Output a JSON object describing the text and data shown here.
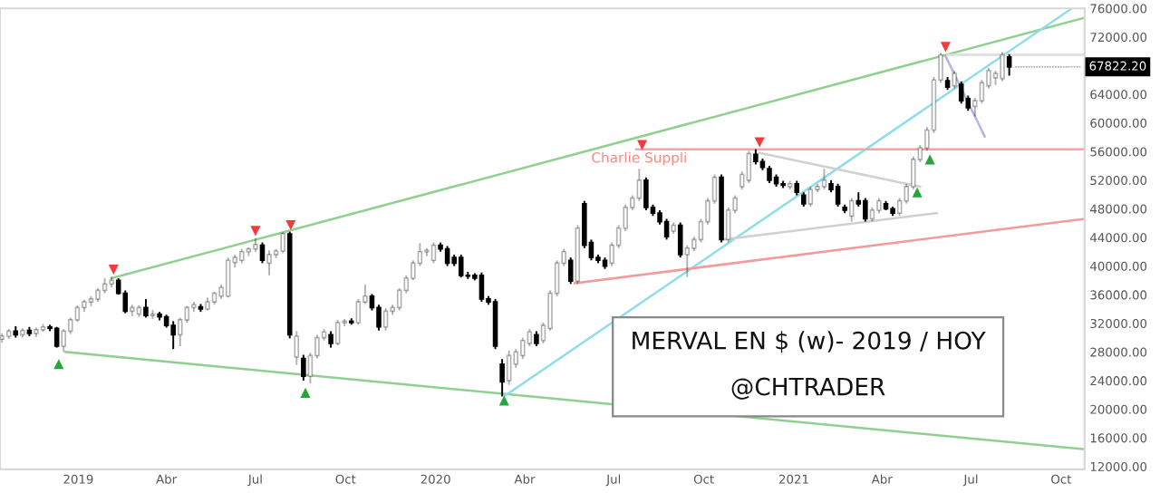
{
  "chart_data": {
    "type": "candlestick",
    "xlim": [
      "2018-10-13",
      "2021-10-25"
    ],
    "ylim": [
      11600,
      76000
    ],
    "xticks": [
      {
        "value": "2019-01-01",
        "label": "2019"
      },
      {
        "value": "2019-04-01",
        "label": "Abr"
      },
      {
        "value": "2019-07-01",
        "label": "Jul"
      },
      {
        "value": "2019-10-01",
        "label": "Oct"
      },
      {
        "value": "2020-01-01",
        "label": "2020"
      },
      {
        "value": "2020-04-01",
        "label": "Abr"
      },
      {
        "value": "2020-07-01",
        "label": "Jul"
      },
      {
        "value": "2020-10-01",
        "label": "Oct"
      },
      {
        "value": "2021-01-01",
        "label": "2021"
      },
      {
        "value": "2021-04-01",
        "label": "Abr"
      },
      {
        "value": "2021-07-01",
        "label": "Jul"
      },
      {
        "value": "2021-10-01",
        "label": "Oct"
      }
    ],
    "yticks": [
      {
        "value": 12000,
        "label": "12000.00"
      },
      {
        "value": 16000,
        "label": "16000.00"
      },
      {
        "value": 20000,
        "label": "20000.00"
      },
      {
        "value": 24000,
        "label": "24000.00"
      },
      {
        "value": 28000,
        "label": "28000.00"
      },
      {
        "value": 32000,
        "label": "32000.00"
      },
      {
        "value": 36000,
        "label": "36000.00"
      },
      {
        "value": 40000,
        "label": "40000.00"
      },
      {
        "value": 44000,
        "label": "44000.00"
      },
      {
        "value": 48000,
        "label": "48000.00"
      },
      {
        "value": 52000,
        "label": "52000.00"
      },
      {
        "value": 56000,
        "label": "56000.00"
      },
      {
        "value": 60000,
        "label": "60000.00"
      },
      {
        "value": 64000,
        "label": "64000.00"
      },
      {
        "value": 72000,
        "label": "72000.00"
      },
      {
        "value": 76000,
        "label": "76000.00"
      }
    ],
    "annotations": [
      "MERVAL EN $ (w)- 2019 / HOY",
      "@CHTRADER",
      {
        "text": "Charlie Suppli",
        "x": "2020-07-27",
        "y": 55000
      },
      {
        "text": "67822.20",
        "x": "2021-08-09",
        "y": 67822.2
      }
    ],
    "series": [
      {
        "type": "line",
        "color": "#8fd08f",
        "x": [
          "2019-02-04",
          "2021-10-25"
        ],
        "values": [
          38300,
          74700
        ]
      },
      {
        "type": "line",
        "color": "#8fd08f",
        "x": [
          "2018-12-19",
          "2021-10-25"
        ],
        "values": [
          28000,
          14400
        ]
      },
      {
        "type": "line",
        "color": "#8fdcea",
        "x": [
          "2020-03-11",
          "2021-10-11"
        ],
        "values": [
          21800,
          75900
        ]
      },
      {
        "type": "line",
        "color": "#f5a3a3",
        "x": [
          "2020-07-24",
          "2021-10-25"
        ],
        "values": [
          56300,
          56300
        ]
      },
      {
        "type": "line",
        "color": "#f29b9b",
        "x": [
          "2020-05-22",
          "2021-10-25"
        ],
        "values": [
          37600,
          46600
        ]
      },
      {
        "type": "line",
        "color": "#d0d0d0",
        "x": [
          "2020-11-27",
          "2021-05-10"
        ],
        "values": [
          55800,
          51100
        ]
      },
      {
        "type": "line",
        "color": "#d0d0d0",
        "x": [
          "2020-10-21",
          "2021-05-27"
        ],
        "values": [
          43700,
          47400
        ]
      },
      {
        "type": "line",
        "color": "#b0b4e6",
        "x": [
          "2021-06-05",
          "2021-07-15"
        ],
        "values": [
          69300,
          58100
        ]
      },
      {
        "type": "line",
        "color": "#dddddd",
        "x": [
          "2021-06-07",
          "2021-10-25"
        ],
        "values": [
          69500,
          69500
        ]
      },
      {
        "type": "scatter",
        "marker": "triangle_down",
        "color": "#f23b3b",
        "x": [
          "2019-02-06",
          "2019-07-01",
          "2019-08-06",
          "2020-07-30",
          "2020-11-27",
          "2021-06-05"
        ],
        "values": [
          39500,
          44900,
          45700,
          56900,
          57300,
          70600
        ]
      },
      {
        "type": "scatter",
        "marker": "triangle",
        "color": "#26a63a",
        "x": [
          "2018-12-12",
          "2019-08-21",
          "2020-03-11",
          "2021-05-07",
          "2021-05-20"
        ],
        "values": [
          26300,
          22300,
          21200,
          50300,
          54900
        ]
      },
      {
        "color": "#000000",
        "x": [
          "2018-10-15",
          "2018-10-22",
          "2018-10-29",
          "2018-11-05",
          "2018-11-12",
          "2018-11-19",
          "2018-11-26",
          "2018-12-03",
          "2018-12-10",
          "2018-12-17",
          "2018-12-24",
          "2018-12-31",
          "2019-01-07",
          "2019-01-14",
          "2019-01-21",
          "2019-01-28",
          "2019-02-04",
          "2019-02-11",
          "2019-02-18",
          "2019-02-25",
          "2019-03-04",
          "2019-03-11",
          "2019-03-18",
          "2019-03-25",
          "2019-04-01",
          "2019-04-08",
          "2019-04-15",
          "2019-04-22",
          "2019-04-29",
          "2019-05-06",
          "2019-05-13",
          "2019-05-20",
          "2019-05-27",
          "2019-06-03",
          "2019-06-10",
          "2019-06-17",
          "2019-06-24",
          "2019-07-01",
          "2019-07-08",
          "2019-07-15",
          "2019-07-22",
          "2019-07-29",
          "2019-08-05",
          "2019-08-12",
          "2019-08-19",
          "2019-08-26",
          "2019-09-02",
          "2019-09-09",
          "2019-09-16",
          "2019-09-23",
          "2019-09-30",
          "2019-10-07",
          "2019-10-14",
          "2019-10-21",
          "2019-10-28",
          "2019-11-04",
          "2019-11-11",
          "2019-11-18",
          "2019-11-25",
          "2019-12-02",
          "2019-12-09",
          "2019-12-16",
          "2019-12-23",
          "2019-12-30",
          "2020-01-06",
          "2020-01-13",
          "2020-01-20",
          "2020-01-27",
          "2020-02-03",
          "2020-02-10",
          "2020-02-17",
          "2020-02-24",
          "2020-03-02",
          "2020-03-09",
          "2020-03-16",
          "2020-03-23",
          "2020-03-30",
          "2020-04-06",
          "2020-04-13",
          "2020-04-20",
          "2020-04-27",
          "2020-05-04",
          "2020-05-11",
          "2020-05-18",
          "2020-05-25",
          "2020-06-01",
          "2020-06-08",
          "2020-06-15",
          "2020-06-22",
          "2020-06-29",
          "2020-07-06",
          "2020-07-13",
          "2020-07-20",
          "2020-07-27",
          "2020-08-03",
          "2020-08-10",
          "2020-08-17",
          "2020-08-24",
          "2020-08-31",
          "2020-09-07",
          "2020-09-14",
          "2020-09-21",
          "2020-09-28",
          "2020-10-05",
          "2020-10-12",
          "2020-10-19",
          "2020-10-26",
          "2020-11-02",
          "2020-11-09",
          "2020-11-16",
          "2020-11-23",
          "2020-11-30",
          "2020-12-07",
          "2020-12-14",
          "2020-12-21",
          "2020-12-28",
          "2021-01-04",
          "2021-01-11",
          "2021-01-18",
          "2021-01-25",
          "2021-02-01",
          "2021-02-08",
          "2021-02-15",
          "2021-02-22",
          "2021-03-01",
          "2021-03-08",
          "2021-03-15",
          "2021-03-22",
          "2021-03-29",
          "2021-04-05",
          "2021-04-12",
          "2021-04-19",
          "2021-04-26",
          "2021-05-03",
          "2021-05-10",
          "2021-05-17",
          "2021-05-24",
          "2021-05-31",
          "2021-06-07",
          "2021-06-14",
          "2021-06-21",
          "2021-06-28",
          "2021-07-05",
          "2021-07-12",
          "2021-07-19",
          "2021-07-26",
          "2021-08-02",
          "2021-08-09"
        ],
        "ohlc": [
          [
            29800,
            30600,
            29300,
            30200
          ],
          [
            30200,
            31200,
            29800,
            30900
          ],
          [
            30900,
            31600,
            30000,
            30400
          ],
          [
            30400,
            31300,
            30000,
            31000
          ],
          [
            31000,
            31500,
            30200,
            30600
          ],
          [
            30600,
            31400,
            30100,
            31100
          ],
          [
            31100,
            31900,
            30800,
            31500
          ],
          [
            31500,
            31800,
            30900,
            31300
          ],
          [
            31300,
            31500,
            28600,
            28800
          ],
          [
            28800,
            31200,
            28000,
            30900
          ],
          [
            30900,
            32800,
            30500,
            32500
          ],
          [
            32500,
            34500,
            32200,
            34200
          ],
          [
            34200,
            35300,
            33600,
            35000
          ],
          [
            35000,
            35800,
            34400,
            35400
          ],
          [
            35400,
            36900,
            35000,
            36600
          ],
          [
            36600,
            38300,
            36200,
            37500
          ],
          [
            37500,
            38500,
            37000,
            38000
          ],
          [
            38000,
            38300,
            36000,
            36200
          ],
          [
            36200,
            36600,
            33400,
            33700
          ],
          [
            33700,
            34600,
            33000,
            34200
          ],
          [
            33300,
            34500,
            32900,
            34200
          ],
          [
            34200,
            35400,
            32800,
            33100
          ],
          [
            33100,
            33900,
            32600,
            33300
          ],
          [
            33300,
            33600,
            32400,
            32900
          ],
          [
            32900,
            33200,
            31400,
            31700
          ],
          [
            31700,
            32300,
            28400,
            30400
          ],
          [
            30400,
            32800,
            28800,
            32500
          ],
          [
            32500,
            34400,
            32100,
            34200
          ],
          [
            34200,
            35000,
            33600,
            34600
          ],
          [
            34300,
            34700,
            33600,
            34000
          ],
          [
            34000,
            35600,
            33800,
            35000
          ],
          [
            35000,
            36400,
            34600,
            36200
          ],
          [
            35800,
            37400,
            35400,
            37000
          ],
          [
            35800,
            41200,
            35600,
            40800
          ],
          [
            40500,
            41600,
            39800,
            41200
          ],
          [
            40800,
            42400,
            40400,
            42000
          ],
          [
            42000,
            42600,
            41400,
            42400
          ],
          [
            42400,
            43900,
            42000,
            43000
          ],
          [
            42900,
            43300,
            40400,
            40800
          ],
          [
            40400,
            42200,
            38700,
            41600
          ],
          [
            41600,
            42400,
            41100,
            42100
          ],
          [
            42100,
            44700,
            41800,
            44500
          ],
          [
            44500,
            44800,
            29900,
            30400
          ],
          [
            27300,
            30900,
            26200,
            30200
          ],
          [
            27100,
            27600,
            24000,
            24600
          ],
          [
            24600,
            27900,
            23600,
            27500
          ],
          [
            27500,
            30400,
            27100,
            30000
          ],
          [
            30000,
            31200,
            29600,
            30800
          ],
          [
            30400,
            30900,
            28600,
            29200
          ],
          [
            29200,
            32500,
            28900,
            32100
          ],
          [
            32100,
            32600,
            31600,
            32300
          ],
          [
            32300,
            32700,
            31800,
            32100
          ],
          [
            32100,
            35400,
            31800,
            35000
          ],
          [
            35000,
            37400,
            34700,
            35800
          ],
          [
            35800,
            36100,
            33800,
            34200
          ],
          [
            34200,
            34600,
            31000,
            31500
          ],
          [
            31500,
            34100,
            31000,
            33700
          ],
          [
            33700,
            34600,
            33200,
            34200
          ],
          [
            34200,
            36900,
            33800,
            36600
          ],
          [
            36600,
            38700,
            36200,
            38300
          ],
          [
            38300,
            40800,
            38000,
            40400
          ],
          [
            40400,
            43200,
            40000,
            42000
          ],
          [
            42000,
            42500,
            41400,
            42200
          ],
          [
            40800,
            43300,
            40400,
            42900
          ],
          [
            42900,
            43300,
            42000,
            42400
          ],
          [
            42400,
            42800,
            40000,
            40400
          ],
          [
            41200,
            41600,
            40000,
            40400
          ],
          [
            41200,
            41600,
            38400,
            38700
          ],
          [
            38700,
            39200,
            38200,
            38600
          ],
          [
            38700,
            39000,
            38000,
            38300
          ],
          [
            38700,
            39100,
            35000,
            35400
          ],
          [
            35400,
            35800,
            34600,
            35000
          ],
          [
            35000,
            35400,
            28400,
            28800
          ],
          [
            26300,
            27000,
            21800,
            23800
          ],
          [
            24000,
            28200,
            23400,
            27500
          ],
          [
            26300,
            28400,
            25800,
            28000
          ],
          [
            27500,
            30000,
            27000,
            29600
          ],
          [
            29200,
            31200,
            28800,
            30800
          ],
          [
            30400,
            30900,
            28800,
            29200
          ],
          [
            29600,
            32100,
            29200,
            31700
          ],
          [
            31300,
            36600,
            31000,
            36200
          ],
          [
            36200,
            40800,
            35800,
            40400
          ],
          [
            40400,
            42400,
            40000,
            42000
          ],
          [
            40800,
            41200,
            37500,
            37900
          ],
          [
            37900,
            45700,
            37500,
            45300
          ],
          [
            48700,
            49100,
            42500,
            42900
          ],
          [
            43300,
            43700,
            40800,
            41200
          ],
          [
            41200,
            41600,
            40400,
            40800
          ],
          [
            40800,
            41200,
            39600,
            40000
          ],
          [
            40400,
            43300,
            40000,
            42900
          ],
          [
            42900,
            45700,
            42500,
            45300
          ],
          [
            45300,
            48600,
            44900,
            48200
          ],
          [
            48200,
            49900,
            47800,
            49500
          ],
          [
            49500,
            53600,
            49100,
            52000
          ],
          [
            52000,
            52400,
            47800,
            48200
          ],
          [
            48200,
            48600,
            47000,
            47400
          ],
          [
            47400,
            47800,
            45800,
            46200
          ],
          [
            46200,
            46600,
            43700,
            44100
          ],
          [
            44900,
            46100,
            44500,
            45700
          ],
          [
            45700,
            46100,
            41200,
            41600
          ],
          [
            41600,
            42900,
            38500,
            42500
          ],
          [
            42500,
            44100,
            42100,
            43700
          ],
          [
            43700,
            46600,
            43300,
            46200
          ],
          [
            46200,
            49500,
            45800,
            49100
          ],
          [
            49100,
            52800,
            48700,
            52400
          ],
          [
            52400,
            52800,
            43300,
            43700
          ],
          [
            43700,
            48200,
            43300,
            47800
          ],
          [
            47800,
            49900,
            47400,
            49500
          ],
          [
            51100,
            53200,
            50700,
            52800
          ],
          [
            52000,
            56100,
            51600,
            55700
          ],
          [
            55600,
            56300,
            54200,
            54600
          ],
          [
            54600,
            55000,
            53400,
            53800
          ],
          [
            53600,
            54000,
            51600,
            52000
          ],
          [
            52400,
            52800,
            51100,
            51500
          ],
          [
            51500,
            51900,
            50900,
            51300
          ],
          [
            51100,
            51900,
            50700,
            51500
          ],
          [
            51500,
            51900,
            49900,
            50300
          ],
          [
            49900,
            50300,
            48300,
            48700
          ],
          [
            48700,
            51100,
            48300,
            50700
          ],
          [
            50700,
            51500,
            50300,
            51100
          ],
          [
            51100,
            53600,
            50700,
            52000
          ],
          [
            51500,
            52000,
            50300,
            50700
          ],
          [
            51100,
            51500,
            48300,
            48700
          ],
          [
            48200,
            48600,
            47400,
            47800
          ],
          [
            47000,
            49500,
            46200,
            49100
          ],
          [
            49100,
            50300,
            48300,
            48700
          ],
          [
            49100,
            49500,
            46200,
            46600
          ],
          [
            46600,
            48200,
            46200,
            47800
          ],
          [
            47800,
            49500,
            47400,
            49100
          ],
          [
            48700,
            49100,
            47800,
            48000
          ],
          [
            48000,
            48300,
            47000,
            47400
          ],
          [
            47400,
            49500,
            47000,
            49100
          ],
          [
            49100,
            51500,
            48700,
            51100
          ],
          [
            51100,
            55300,
            50700,
            54900
          ],
          [
            54900,
            56900,
            54500,
            56500
          ],
          [
            56500,
            59400,
            56100,
            59000
          ],
          [
            59000,
            66400,
            58600,
            66000
          ],
          [
            66000,
            69800,
            65600,
            69500
          ],
          [
            65900,
            66400,
            64600,
            65000
          ],
          [
            65200,
            67300,
            64800,
            66900
          ],
          [
            65400,
            65800,
            62700,
            63100
          ],
          [
            63400,
            63800,
            61700,
            62100
          ],
          [
            62300,
            63500,
            60900,
            63100
          ],
          [
            63100,
            66000,
            62700,
            65600
          ],
          [
            65200,
            67700,
            64800,
            67300
          ],
          [
            66300,
            67300,
            65300,
            66900
          ],
          [
            66200,
            69900,
            65800,
            69500
          ],
          [
            69200,
            69600,
            66600,
            67822.2
          ]
        ]
      }
    ]
  }
}
